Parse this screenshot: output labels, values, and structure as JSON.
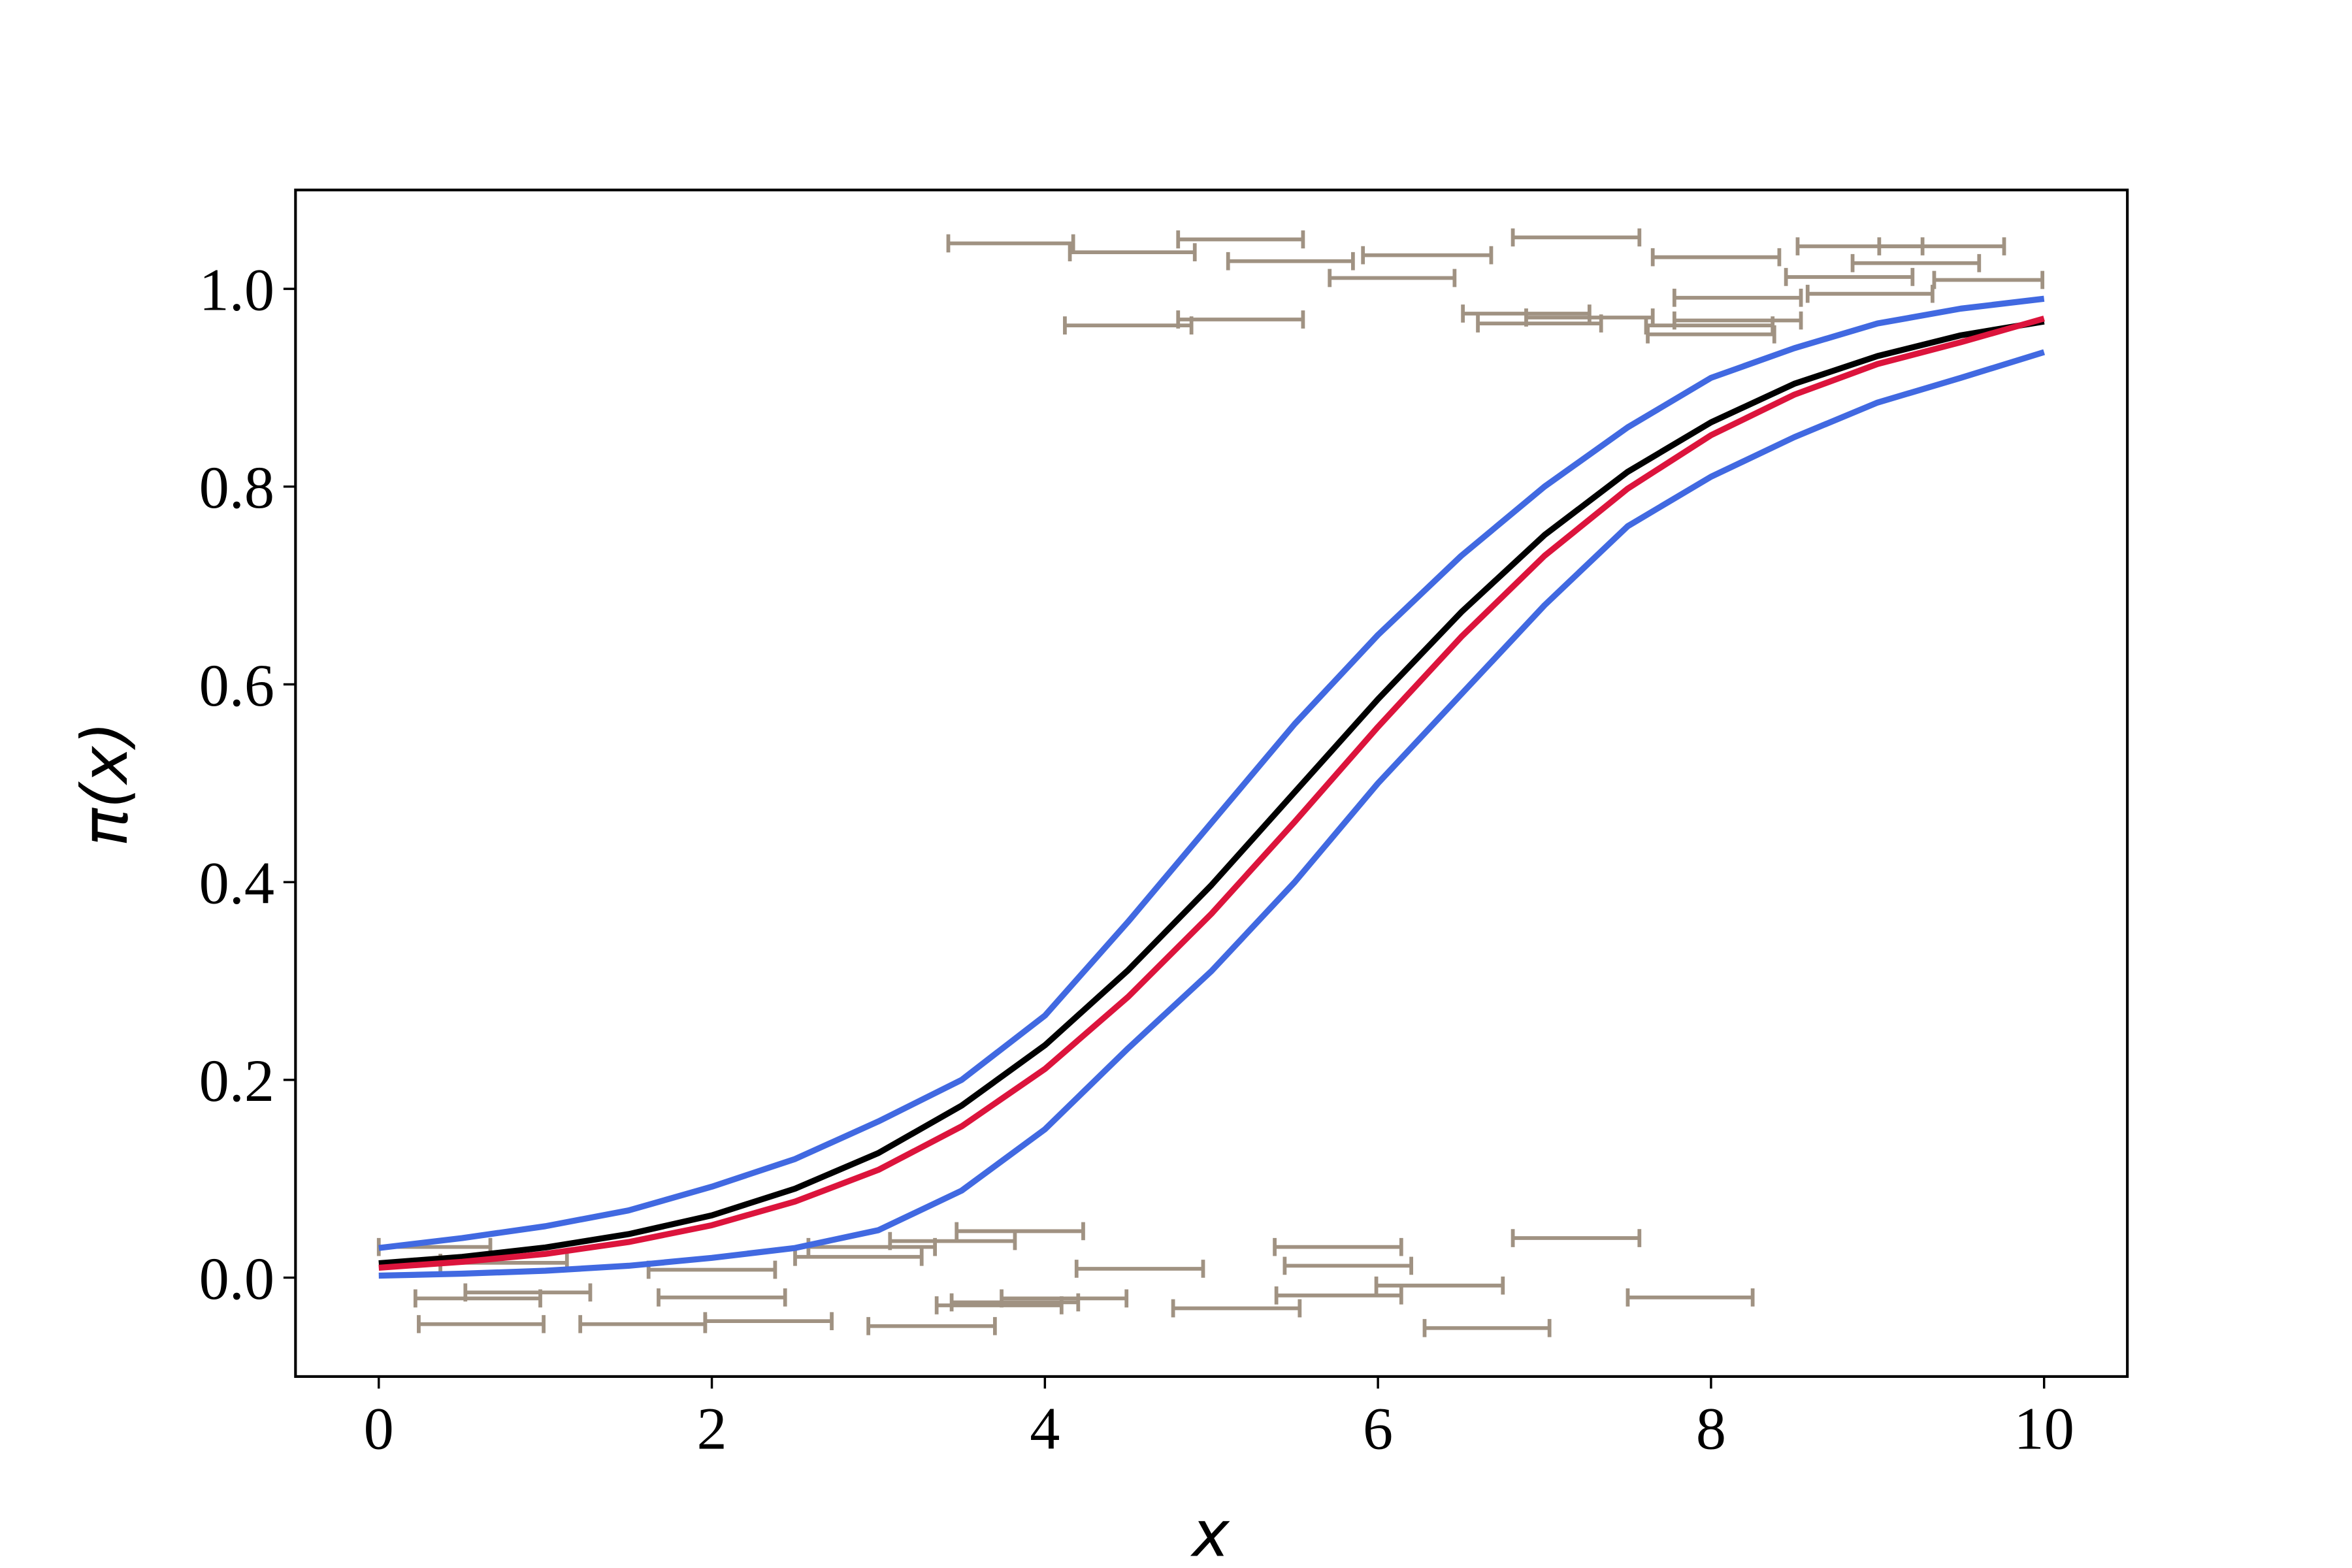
{
  "chart_data": {
    "type": "line",
    "xlabel": "x",
    "ylabel": "π(x)",
    "xlim": [
      -0.5,
      10.5
    ],
    "ylim": [
      -0.1,
      1.1
    ],
    "xticks": [
      0,
      2,
      4,
      6,
      8,
      10
    ],
    "yticks": [
      {
        "value": 0,
        "label": "0.0"
      },
      {
        "value": 0.2,
        "label": "0.2"
      },
      {
        "value": 0.4,
        "label": "0.4"
      },
      {
        "value": 0.6,
        "label": "0.6"
      },
      {
        "value": 0.8,
        "label": "0.8"
      },
      {
        "value": 1,
        "label": "1.0"
      }
    ],
    "x": [
      0,
      0.5,
      1,
      1.5,
      2,
      2.5,
      3,
      3.5,
      4,
      4.5,
      5,
      5.5,
      6,
      6.5,
      7,
      7.5,
      8,
      8.5,
      9,
      9.5,
      10
    ],
    "series": [
      {
        "color": "#4169e1",
        "values": [
          0.002,
          0.004,
          0.007,
          0.012,
          0.02,
          0.03,
          0.048,
          0.088,
          0.15,
          0.232,
          0.31,
          0.4,
          0.5,
          0.59,
          0.68,
          0.76,
          0.81,
          0.85,
          0.885,
          0.91,
          0.936
        ]
      },
      {
        "color": "#4169e1",
        "values": [
          0.03,
          0.04,
          0.052,
          0.068,
          0.092,
          0.12,
          0.158,
          0.2,
          0.265,
          0.36,
          0.46,
          0.56,
          0.65,
          0.73,
          0.8,
          0.86,
          0.91,
          0.94,
          0.965,
          0.98,
          0.99
        ]
      },
      {
        "color": "#000000",
        "values": [
          0.0145,
          0.021,
          0.0305,
          0.044,
          0.063,
          0.09,
          0.126,
          0.174,
          0.235,
          0.311,
          0.397,
          0.491,
          0.585,
          0.673,
          0.751,
          0.815,
          0.865,
          0.904,
          0.932,
          0.953,
          0.967
        ]
      },
      {
        "color": "#dc143c",
        "values": [
          0.01,
          0.016,
          0.024,
          0.036,
          0.053,
          0.077,
          0.109,
          0.153,
          0.211,
          0.284,
          0.368,
          0.461,
          0.557,
          0.648,
          0.73,
          0.798,
          0.852,
          0.893,
          0.924,
          0.946,
          0.97
        ]
      }
    ],
    "intervals": {
      "color": "#a09282",
      "x_low": [
        3.42,
        4.15,
        4.8,
        5.1,
        5.91,
        5.71,
        6.81,
        7.65,
        8.52,
        9.01,
        8.85,
        8.45,
        9.34,
        8.58,
        7.78,
        4.12,
        4.8,
        6.51,
        6.6,
        6.89,
        7.61,
        7.78,
        7.62,
        0.0,
        0.37,
        0.22,
        0.52,
        0.24,
        1.21,
        1.62,
        1.68,
        1.96,
        2.5,
        2.58,
        3.07,
        3.47,
        2.94,
        3.35,
        3.44,
        3.74,
        4.19,
        4.77,
        5.38,
        5.44,
        5.39,
        5.99,
        6.28,
        6.81,
        7.5
      ],
      "x_high": [
        4.17,
        4.9,
        5.55,
        5.85,
        6.68,
        6.46,
        7.57,
        8.41,
        9.27,
        9.76,
        9.61,
        9.21,
        9.99,
        9.33,
        8.54,
        4.88,
        5.55,
        7.27,
        7.34,
        7.65,
        8.37,
        8.54,
        8.38,
        0.67,
        1.13,
        0.97,
        1.27,
        0.99,
        1.96,
        2.38,
        2.44,
        2.72,
        3.26,
        3.34,
        3.82,
        4.23,
        3.7,
        4.1,
        4.2,
        4.49,
        4.95,
        5.53,
        6.14,
        6.2,
        6.14,
        6.75,
        7.03,
        7.57,
        8.25
      ],
      "y": [
        1.046,
        1.037,
        1.05,
        1.028,
        1.034,
        1.011,
        1.052,
        1.032,
        1.043,
        1.043,
        1.026,
        1.012,
        1.009,
        0.995,
        0.991,
        0.963,
        0.969,
        0.975,
        0.965,
        0.971,
        0.963,
        0.968,
        0.954,
        0.031,
        0.015,
        -0.021,
        -0.015,
        -0.047,
        -0.047,
        0.008,
        -0.02,
        -0.044,
        0.021,
        0.031,
        0.037,
        0.047,
        -0.049,
        -0.028,
        -0.025,
        -0.021,
        0.009,
        -0.031,
        0.031,
        0.012,
        -0.018,
        -0.008,
        -0.051,
        0.04,
        -0.02
      ]
    }
  }
}
